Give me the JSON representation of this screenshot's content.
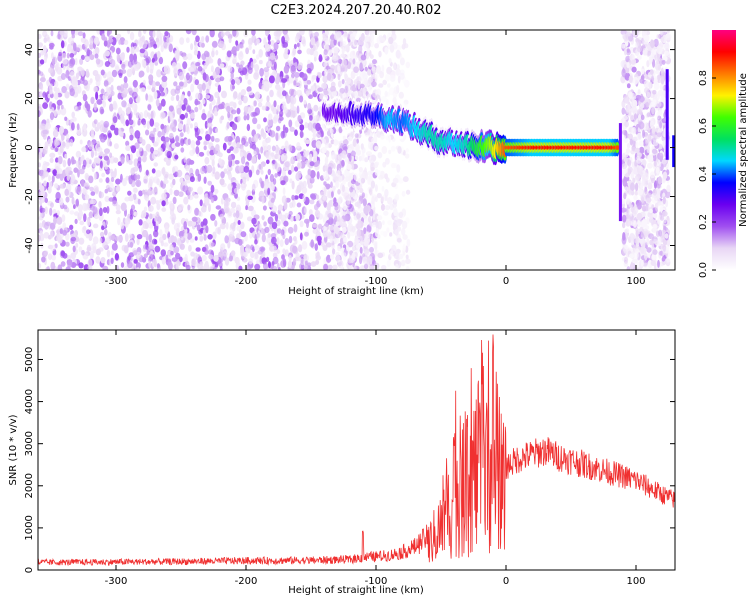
{
  "title": "C2E3.2024.207.20.40.R02",
  "chart_data": [
    {
      "type": "heatmap",
      "name": "spectrogram",
      "xlabel": "Height of straight line (km)",
      "ylabel": "Frequency (Hz)",
      "xlim": [
        -360,
        130
      ],
      "ylim": [
        -50,
        48
      ],
      "xticks": [
        -300,
        -200,
        -100,
        0,
        100
      ],
      "yticks": [
        -40,
        -20,
        0,
        20,
        40
      ],
      "grid": false,
      "colorbar": {
        "label": "Normalized spectral amplitude",
        "range": [
          0,
          1
        ],
        "ticks": [
          "0.0",
          "0.2",
          "0.4",
          "0.6",
          "0.8"
        ],
        "tick_values": [
          0.0,
          0.2,
          0.4,
          0.6,
          0.8
        ],
        "colormap": [
          "#ffffff",
          "#e8d6f5",
          "#a04ff0",
          "#6a00f0",
          "#0000ff",
          "#00d8ff",
          "#00e060",
          "#40ff00",
          "#fff200",
          "#ff7a00",
          "#ff0000",
          "#ff0080"
        ]
      },
      "noise_regions": [
        {
          "x": [
            -360,
            -140
          ],
          "y": [
            -50,
            48
          ],
          "density": "high",
          "amplitude": [
            0.05,
            0.2
          ]
        },
        {
          "x": [
            -140,
            -100
          ],
          "y": [
            -50,
            48
          ],
          "density": "medium",
          "amplitude": [
            0.02,
            0.15
          ]
        },
        {
          "x": [
            -100,
            -75
          ],
          "y": [
            -50,
            48
          ],
          "density": "low",
          "amplitude": [
            0.01,
            0.08
          ]
        },
        {
          "x": [
            90,
            125
          ],
          "y": [
            -50,
            48
          ],
          "density": "medium",
          "amplitude": [
            0.02,
            0.15
          ]
        }
      ],
      "signal_track": {
        "x": [
          -140,
          -120,
          -100,
          -90,
          -80,
          -70,
          -60,
          -50,
          -40,
          -30,
          -20,
          -10,
          0,
          20,
          40,
          60,
          80,
          86
        ],
        "y": [
          15,
          14,
          13,
          12,
          11,
          8,
          5,
          3,
          2,
          1,
          0.5,
          0.5,
          0,
          0,
          0,
          0,
          0,
          0
        ],
        "amplitude": [
          0.25,
          0.3,
          0.35,
          0.45,
          0.4,
          0.45,
          0.5,
          0.5,
          0.45,
          0.5,
          0.6,
          0.7,
          0.85,
          0.9,
          0.9,
          0.9,
          0.9,
          0.85
        ]
      },
      "vertical_stripes": [
        {
          "x": 88,
          "y": [
            -30,
            10
          ],
          "amplitude": 0.25
        },
        {
          "x": 124,
          "y": [
            -5,
            32
          ],
          "amplitude": 0.3
        },
        {
          "x": 129,
          "y": [
            -8,
            5
          ],
          "amplitude": 0.35
        }
      ]
    },
    {
      "type": "line",
      "name": "snr",
      "xlabel": "Height of straight line (km)",
      "ylabel": "SNR (10 * v/v)",
      "xlim": [
        -360,
        130
      ],
      "ylim": [
        0,
        5700
      ],
      "xticks": [
        -300,
        -200,
        -100,
        0,
        100
      ],
      "yticks": [
        0,
        1000,
        2000,
        3000,
        4000,
        5000
      ],
      "grid": false,
      "color": "#f03030",
      "envelope": {
        "x": [
          -360,
          -300,
          -250,
          -200,
          -150,
          -120,
          -110,
          -100,
          -90,
          -80,
          -70,
          -60,
          -50,
          -45,
          -40,
          -35,
          -30,
          -25,
          -20,
          -15,
          -10,
          -5,
          0,
          10,
          20,
          30,
          40,
          60,
          80,
          100,
          120,
          130
        ],
        "y": [
          180,
          190,
          200,
          220,
          230,
          250,
          300,
          320,
          350,
          420,
          550,
          800,
          1400,
          1800,
          2600,
          2400,
          2800,
          3100,
          3300,
          3500,
          3200,
          2600,
          2600,
          2800,
          2900,
          3000,
          2850,
          2650,
          2450,
          2250,
          1900,
          1750
        ]
      },
      "peaks": [
        {
          "x": -110,
          "y": 1000
        },
        {
          "x": -40,
          "y": 3400
        },
        {
          "x": -30,
          "y": 3900
        },
        {
          "x": -20,
          "y": 4100
        },
        {
          "x": -15,
          "y": 4000
        },
        {
          "x": -10,
          "y": 5700
        },
        {
          "x": -5,
          "y": 2600
        }
      ]
    }
  ]
}
